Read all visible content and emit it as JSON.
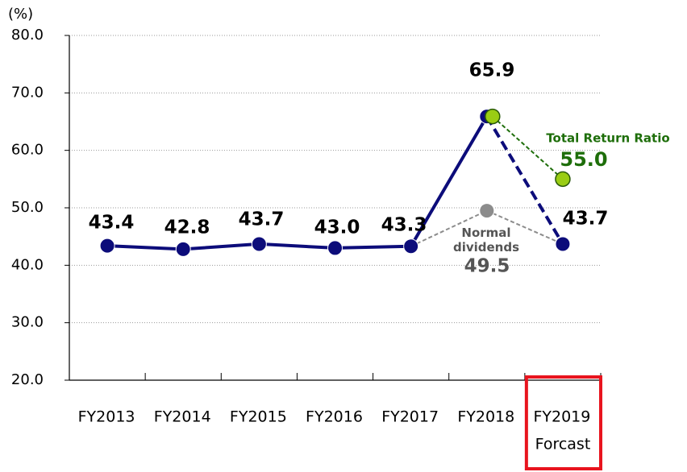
{
  "chart_data": {
    "type": "line",
    "y_unit_label": "(%)",
    "categories": [
      "FY2013",
      "FY2014",
      "FY2015",
      "FY2016",
      "FY2017",
      "FY2018",
      "FY2019"
    ],
    "category_note": "Forcast",
    "ylim": [
      20,
      80
    ],
    "yticks": [
      {
        "value": 20,
        "label": "20.0"
      },
      {
        "value": 30,
        "label": "30.0"
      },
      {
        "value": 40,
        "label": "40.0"
      },
      {
        "value": 50,
        "label": "50.0"
      },
      {
        "value": 60,
        "label": "60.0"
      },
      {
        "value": 70,
        "label": "70.0"
      },
      {
        "value": 80,
        "label": "80.0"
      }
    ],
    "grid": true,
    "series": [
      {
        "name": "Normal dividends",
        "color": "#8c8c8c",
        "values": [
          null,
          null,
          null,
          null,
          43.3,
          49.5,
          43.7
        ],
        "value_labels": [
          null,
          null,
          null,
          null,
          null,
          "49.5",
          null
        ]
      },
      {
        "color": "#0c0c7a",
        "values": [
          43.4,
          42.8,
          43.7,
          43.0,
          43.3,
          65.9,
          43.7
        ],
        "value_labels": [
          "43.4",
          "42.8",
          "43.7",
          "43.0",
          "43.3",
          "65.9",
          "43.7"
        ]
      },
      {
        "name": "Total Return Ratio",
        "color": "#1e6e0a",
        "values": [
          null,
          null,
          null,
          null,
          null,
          65.9,
          55.0
        ],
        "value_labels": [
          null,
          null,
          null,
          null,
          null,
          null,
          "55.0"
        ]
      }
    ]
  }
}
